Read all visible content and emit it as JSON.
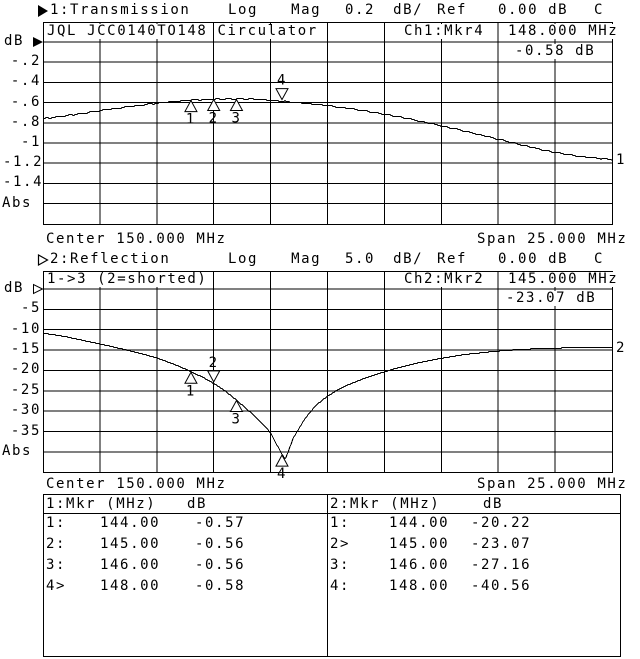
{
  "screen": {
    "background": "#ffffff",
    "foreground": "#000000"
  },
  "ch1": {
    "annotation": {
      "channel": "1:Transmission",
      "format": "Log Mag",
      "scale": "0.2 dB/",
      "ref_label": "Ref",
      "ref_value": "0.00 dB",
      "status": "C",
      "active_icon": "filled-right-triangle"
    },
    "header_title": "JQL JCC0140TO148 Circulator",
    "readout": {
      "channel_marker": "Ch1:Mkr4",
      "frequency": "148.000 MHz",
      "value": "-0.58 dB"
    },
    "unit_label": "dB",
    "scale_ticks": [
      "-.2",
      "-.4",
      "-.6",
      "-.8",
      "-1",
      "-1.2",
      "-1.4"
    ],
    "abs_label": "Abs",
    "center_label": "Center 150.000 MHz",
    "span_label": "Span 25.000 MHz",
    "trace_number": "1"
  },
  "ch2": {
    "annotation": {
      "channel": "2:Reflection",
      "format": "Log Mag",
      "scale": "5.0 dB/",
      "ref_label": "Ref",
      "ref_value": "0.00 dB",
      "status": "C",
      "active_icon": "hollow-right-triangle"
    },
    "header_title": "1->3 (2=shorted)",
    "readout": {
      "channel_marker": "Ch2:Mkr2",
      "frequency": "145.000 MHz",
      "value": "-23.07 dB"
    },
    "unit_label": "dB",
    "scale_ticks": [
      "-5",
      "-10",
      "-15",
      "-20",
      "-25",
      "-30",
      "-35"
    ],
    "abs_label": "Abs",
    "center_label": "Center 150.000 MHz",
    "span_label": "Span 25.000 MHz",
    "trace_number": "2"
  },
  "marker_table": {
    "ch1": {
      "header": "1:Mkr (MHz)",
      "header_unit": "dB",
      "rows": [
        {
          "label": "1:",
          "freq": "144.00",
          "value": "-0.57"
        },
        {
          "label": "2:",
          "freq": "145.00",
          "value": "-0.56"
        },
        {
          "label": "3:",
          "freq": "146.00",
          "value": "-0.56"
        },
        {
          "label": "4>",
          "freq": "148.00",
          "value": "-0.58"
        }
      ]
    },
    "ch2": {
      "header": "2:Mkr (MHz)",
      "header_unit": "dB",
      "rows": [
        {
          "label": "1:",
          "freq": "144.00",
          "value": "-20.22"
        },
        {
          "label": "2>",
          "freq": "145.00",
          "value": "-23.07"
        },
        {
          "label": "3:",
          "freq": "146.00",
          "value": "-27.16"
        },
        {
          "label": "4:",
          "freq": "148.00",
          "value": "-40.56"
        }
      ]
    }
  },
  "chart_data": [
    {
      "type": "line",
      "name": "transmission",
      "channel": 1,
      "title": "1:Transmission",
      "format": "Log Mag",
      "scale_db_per_div": 0.2,
      "ref_db": 0.0,
      "center_mhz": 150.0,
      "span_mhz": 25.0,
      "x_range_mhz": [
        137.5,
        162.5
      ],
      "ylim_db": [
        -1.8,
        0.0
      ],
      "grid": "on",
      "ylabel": "dB",
      "points_mhz_db": [
        [
          137.5,
          -0.755
        ],
        [
          139,
          -0.71
        ],
        [
          140,
          -0.675
        ],
        [
          141,
          -0.645
        ],
        [
          142,
          -0.615
        ],
        [
          143,
          -0.59
        ],
        [
          144,
          -0.57
        ],
        [
          145,
          -0.562
        ],
        [
          146,
          -0.558
        ],
        [
          147,
          -0.562
        ],
        [
          148,
          -0.58
        ],
        [
          149,
          -0.6
        ],
        [
          150,
          -0.625
        ],
        [
          151,
          -0.655
        ],
        [
          152,
          -0.69
        ],
        [
          153,
          -0.73
        ],
        [
          154,
          -0.775
        ],
        [
          155,
          -0.825
        ],
        [
          156,
          -0.875
        ],
        [
          157,
          -0.93
        ],
        [
          158,
          -0.985
        ],
        [
          159,
          -1.04
        ],
        [
          160,
          -1.09
        ],
        [
          161,
          -1.125
        ],
        [
          162,
          -1.15
        ],
        [
          162.5,
          -1.16
        ]
      ],
      "markers": [
        {
          "n": "1",
          "mhz": 144.0,
          "db": -0.57,
          "active": false
        },
        {
          "n": "2",
          "mhz": 145.0,
          "db": -0.56,
          "active": false
        },
        {
          "n": "3",
          "mhz": 146.0,
          "db": -0.56,
          "active": false
        },
        {
          "n": "4",
          "mhz": 148.0,
          "db": -0.58,
          "active": true
        }
      ]
    },
    {
      "type": "line",
      "name": "reflection",
      "channel": 2,
      "title": "2:Reflection",
      "format": "Log Mag",
      "scale_db_per_div": 5.0,
      "ref_db": 0.0,
      "center_mhz": 150.0,
      "span_mhz": 25.0,
      "x_range_mhz": [
        137.5,
        162.5
      ],
      "ylim_db": [
        -45.0,
        0.0
      ],
      "grid": "on",
      "ylabel": "dB",
      "points_mhz_db": [
        [
          137.5,
          -10.7
        ],
        [
          138.5,
          -11.6
        ],
        [
          139.5,
          -12.8
        ],
        [
          140.5,
          -14.0
        ],
        [
          141.5,
          -15.3
        ],
        [
          142.5,
          -16.8
        ],
        [
          143.5,
          -18.9
        ],
        [
          144,
          -20.22
        ],
        [
          144.5,
          -21.5
        ],
        [
          145,
          -23.07
        ],
        [
          145.5,
          -24.9
        ],
        [
          146,
          -27.16
        ],
        [
          146.5,
          -29.6
        ],
        [
          147,
          -32.2
        ],
        [
          147.5,
          -35.2
        ],
        [
          148,
          -40.56
        ],
        [
          148.15,
          -41.6
        ],
        [
          148.5,
          -36.5
        ],
        [
          149,
          -31.8
        ],
        [
          149.5,
          -28.4
        ],
        [
          150,
          -26.2
        ],
        [
          150.5,
          -24.5
        ],
        [
          151,
          -23.2
        ],
        [
          151.5,
          -22.1
        ],
        [
          152,
          -21.1
        ],
        [
          153,
          -19.4
        ],
        [
          154,
          -18.0
        ],
        [
          155,
          -16.9
        ],
        [
          156,
          -16.0
        ],
        [
          157,
          -15.4
        ],
        [
          158,
          -14.9
        ],
        [
          159,
          -14.6
        ],
        [
          160,
          -14.4
        ],
        [
          161,
          -14.3
        ],
        [
          162.5,
          -14.2
        ]
      ],
      "markers": [
        {
          "n": "1",
          "mhz": 144.0,
          "db": -20.22,
          "active": false
        },
        {
          "n": "2",
          "mhz": 145.0,
          "db": -23.07,
          "active": true
        },
        {
          "n": "3",
          "mhz": 146.0,
          "db": -27.16,
          "active": false
        },
        {
          "n": "4",
          "mhz": 148.0,
          "db": -40.56,
          "active": false
        }
      ]
    }
  ]
}
